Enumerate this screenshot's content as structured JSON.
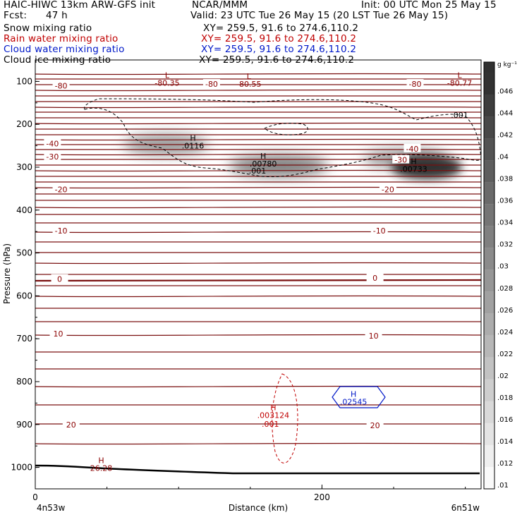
{
  "header": {
    "title_left": "HAIC-HIWC 13km ARW-GFS init",
    "center": "NCAR/MMM",
    "init": "Init: 00 UTC Mon 25 May 15",
    "fcst_label": "Fcst:",
    "fcst_value": "47 h",
    "valid": "Valid: 23 UTC Tue 26 May 15 (20 LST Tue 26 May 15)",
    "fields": [
      {
        "name": "Snow mixing ratio",
        "xy": "XY= 259.5, 91.6 to 274.6,110.2",
        "color": "#000000"
      },
      {
        "name": "Rain water mixing ratio",
        "xy": "XY= 259.5, 91.6 to 274.6,110.2",
        "color": "#c00000"
      },
      {
        "name": "Cloud water mixing ratio",
        "xy": "XY= 259.5, 91.6 to 274.6,110.2",
        "color": "#0018c8"
      },
      {
        "name": "Cloud ice mixing ratio",
        "xy": "XY= 259.5, 91.6 to 274.6,110.2",
        "color": "#000000"
      }
    ]
  },
  "chart_data": {
    "type": "cross-section",
    "xlabel": "Distance (km)",
    "ylabel": "Pressure (hPa)",
    "x_ticks": [
      0,
      200
    ],
    "xlim": [
      0,
      311
    ],
    "y_ticks": [
      100,
      200,
      300,
      400,
      500,
      600,
      700,
      800,
      900,
      1000
    ],
    "ylim": [
      1050,
      50
    ],
    "x_left_label": "4n53w",
    "x_right_label": "6n51w",
    "colorbar": {
      "unit": "g kg⁻¹",
      "ticks": [
        ".01",
        ".012",
        ".014",
        ".016",
        ".018",
        ".02",
        ".022",
        ".024",
        ".026",
        ".028",
        ".03",
        ".032",
        ".034",
        ".036",
        ".038",
        ".04",
        ".042",
        ".044",
        ".046"
      ]
    },
    "temperature_labels": [
      {
        "x": 18,
        "p": 110,
        "text": "-80"
      },
      {
        "x": 123,
        "p": 106,
        "text": "-80"
      },
      {
        "x": 265,
        "p": 106,
        "text": "-80"
      },
      {
        "x": 12,
        "p": 245,
        "text": "-40"
      },
      {
        "x": 263,
        "p": 257,
        "text": "-40"
      },
      {
        "x": 12,
        "p": 275,
        "text": "-30"
      },
      {
        "x": 255,
        "p": 283,
        "text": "-30"
      },
      {
        "x": 18,
        "p": 352,
        "text": "-20"
      },
      {
        "x": 246,
        "p": 352,
        "text": "-20"
      },
      {
        "x": 18,
        "p": 448,
        "text": "-10"
      },
      {
        "x": 240,
        "p": 448,
        "text": "-10"
      },
      {
        "x": 17,
        "p": 561,
        "text": "0"
      },
      {
        "x": 237,
        "p": 558,
        "text": "0"
      },
      {
        "x": 16,
        "p": 688,
        "text": "10"
      },
      {
        "x": 236,
        "p": 693,
        "text": "10"
      },
      {
        "x": 25,
        "p": 900,
        "text": "20"
      },
      {
        "x": 237,
        "p": 902,
        "text": "20"
      }
    ],
    "extrema": [
      {
        "x": 92,
        "p": 92,
        "mark": "L",
        "value": "-80.35",
        "color": "#8b0000"
      },
      {
        "x": 149,
        "p": 94,
        "mark": "L",
        "value": "-80.55",
        "color": "#8b0000"
      },
      {
        "x": 296,
        "p": 92,
        "mark": "L",
        "value": "-80.77",
        "color": "#8b0000"
      },
      {
        "x": 110,
        "p": 238,
        "mark": "H",
        "value": ".0116",
        "color": "#000000"
      },
      {
        "x": 159,
        "p": 280,
        "mark": "H",
        "value": ".00780",
        "color": "#000000"
      },
      {
        "x": 264,
        "p": 293,
        "mark": "H",
        "value": ".00733",
        "color": "#000000"
      },
      {
        "x": 166,
        "p": 867,
        "mark": "H",
        "value": ".003124",
        "color": "#c00000"
      },
      {
        "x": 222,
        "p": 835,
        "mark": "H",
        "value": ".02545",
        "color": "#0018c8"
      },
      {
        "x": 46,
        "p": 990,
        "mark": "H",
        "value": "26.28",
        "color": "#8b0000"
      }
    ],
    "contour_labels": [
      {
        "x": 155,
        "p": 315,
        "text": ".001",
        "color": "#000000"
      },
      {
        "x": 296,
        "p": 185,
        "text": ".001",
        "color": "#000000"
      },
      {
        "x": 164,
        "p": 905,
        "text": ".001",
        "color": "#c00000"
      }
    ]
  }
}
